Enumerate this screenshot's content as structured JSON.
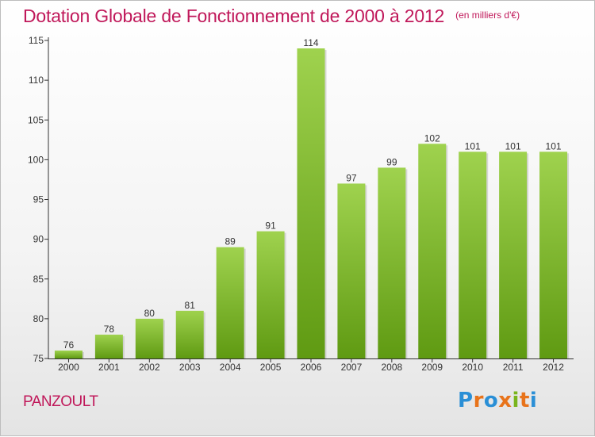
{
  "header": {
    "title": "Dotation Globale de Fonctionnement de 2000 à 2012",
    "unit_note": "(en milliers d'€)"
  },
  "footer": {
    "commune": "PANZOULT",
    "logo_text": "Proxiti",
    "logo_colors": [
      "#2a8fd6",
      "#e8731a",
      "#2a8fd6",
      "#e8731a",
      "#7ab51d",
      "#e8731a",
      "#2a8fd6"
    ]
  },
  "colors": {
    "accent": "#c0185a",
    "bar_top": "#9fd24e",
    "bar_bottom": "#5f9a12",
    "axis": "#333333"
  },
  "chart_data": {
    "type": "bar",
    "categories": [
      "2000",
      "2001",
      "2002",
      "2003",
      "2004",
      "2005",
      "2006",
      "2007",
      "2008",
      "2009",
      "2010",
      "2011",
      "2012"
    ],
    "values": [
      76,
      78,
      80,
      81,
      89,
      91,
      114,
      97,
      99,
      102,
      101,
      101,
      101
    ],
    "data_labels": [
      "76",
      "78",
      "80",
      "81",
      "89",
      "91",
      "114",
      "97",
      "99",
      "102",
      "101",
      "101",
      "101"
    ],
    "yticks": [
      75,
      80,
      85,
      90,
      95,
      100,
      105,
      110,
      115
    ],
    "ylim": [
      75,
      115
    ],
    "grid": false
  }
}
